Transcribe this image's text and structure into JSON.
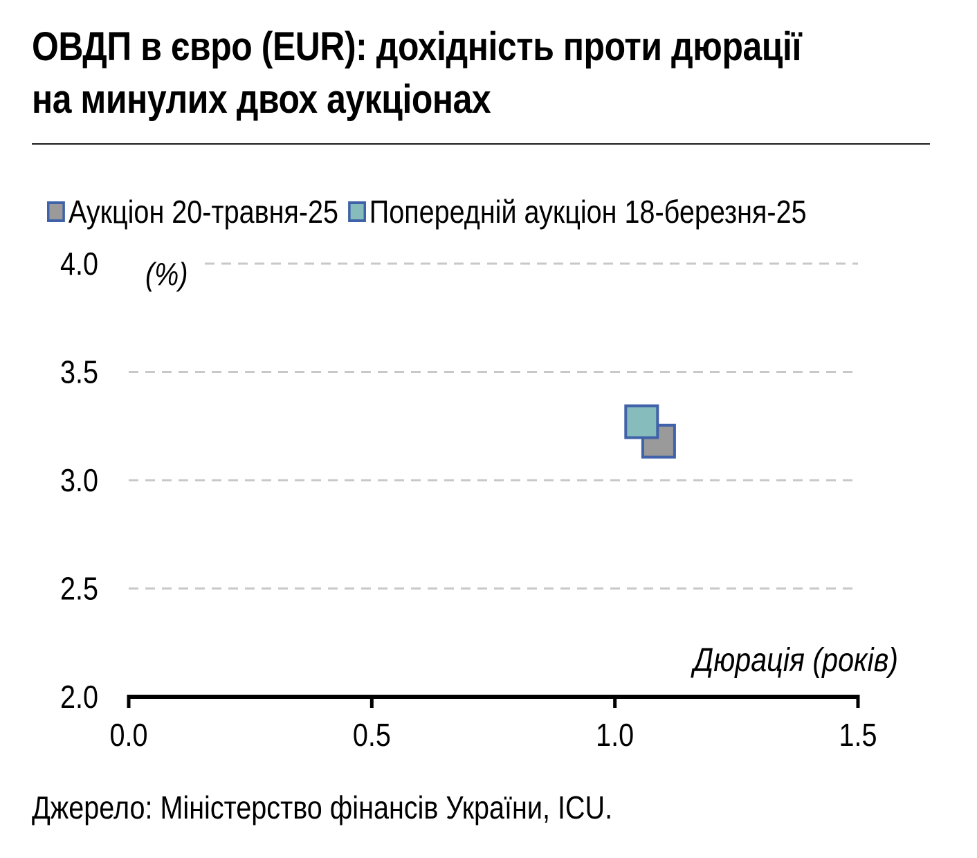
{
  "header": {
    "title_line1": "ОВДП в євро (EUR): дохідність проти дюрації",
    "title_line2": "на минулих двох аукціонах"
  },
  "source": "Джерело: Міністерство фінансів України, ICU.",
  "chart_data": {
    "type": "scatter",
    "ylabel": "(%)",
    "xlabel": "Дюрація (років)",
    "xlim": [
      0.0,
      1.5
    ],
    "ylim": [
      2.0,
      4.0
    ],
    "x_ticks": [
      "0.0",
      "0.5",
      "1.0",
      "1.5"
    ],
    "y_ticks": [
      "2.0",
      "2.5",
      "3.0",
      "3.5",
      "4.0"
    ],
    "grid": "horizontal-dashed",
    "legend_placement": "top-left",
    "series": [
      {
        "name": "Аукціон 20-травня-25",
        "color": "#9a9a9a",
        "edge": "#3f62a8",
        "points": [
          {
            "x": 1.09,
            "y": 3.18
          }
        ]
      },
      {
        "name": "Попередній аукціон 18-березня-25",
        "color": "#86bcbc",
        "edge": "#3f62a8",
        "points": [
          {
            "x": 1.055,
            "y": 3.27
          }
        ]
      }
    ]
  }
}
